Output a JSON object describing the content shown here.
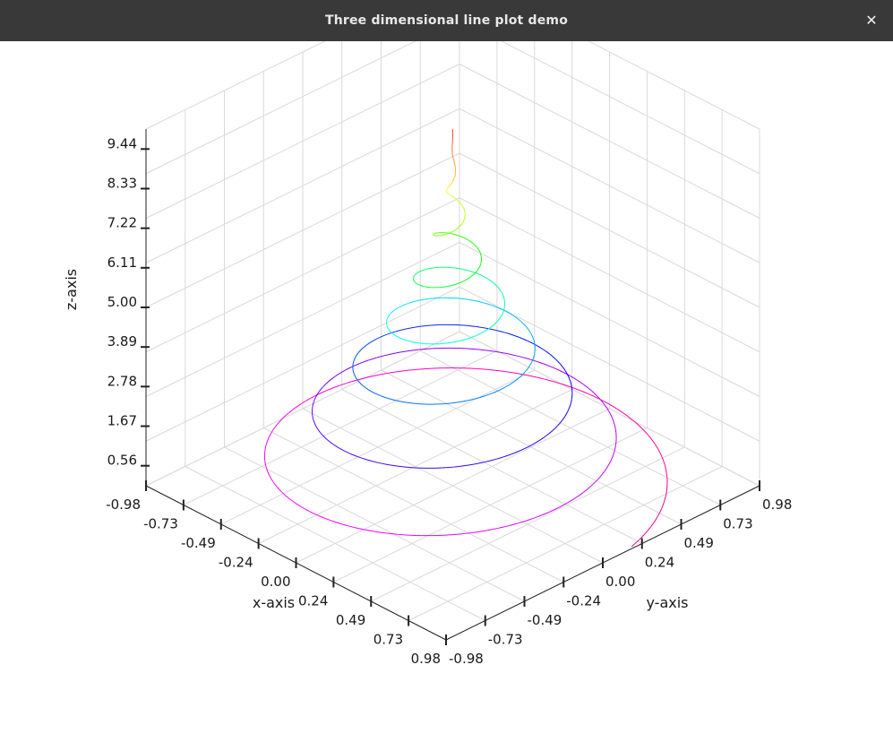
{
  "window": {
    "title": "Three dimensional line plot demo",
    "close_icon": "close-icon"
  },
  "chart_data": {
    "type": "line3d",
    "title": "Three dimensional line plot demo",
    "xlabel": "x-axis",
    "ylabel": "y-axis",
    "zlabel": "z-axis",
    "xlim": [
      -0.98,
      0.98
    ],
    "ylim": [
      -0.98,
      0.98
    ],
    "zlim": [
      0.0,
      10.0
    ],
    "xticks": [
      "-0.98",
      "-0.73",
      "-0.49",
      "-0.24",
      "0.00",
      "0.24",
      "0.49",
      "0.73",
      "0.98"
    ],
    "yticks": [
      "-0.98",
      "-0.73",
      "-0.49",
      "-0.24",
      "0.00",
      "0.24",
      "0.49",
      "0.73",
      "0.98"
    ],
    "zticks": [
      "0.56",
      "1.67",
      "2.78",
      "3.89",
      "5.00",
      "6.11",
      "7.22",
      "8.33",
      "9.44"
    ],
    "grid": true,
    "colormap": [
      "#ff0080",
      "#ff00ff",
      "#8000ff",
      "#0000ff",
      "#0080ff",
      "#00ffff",
      "#00ff80",
      "#00ff00",
      "#80ff00",
      "#ffff00",
      "#ff8000",
      "#ff0000"
    ],
    "series": [
      {
        "curve": "spiral",
        "x": "cos(16*pi*t) * (1 - t)^2",
        "y": "sin(16*pi*t) * (1 - t)^2",
        "z": "10 * t",
        "t_range": [
          0,
          1
        ],
        "turns": 8
      }
    ]
  }
}
